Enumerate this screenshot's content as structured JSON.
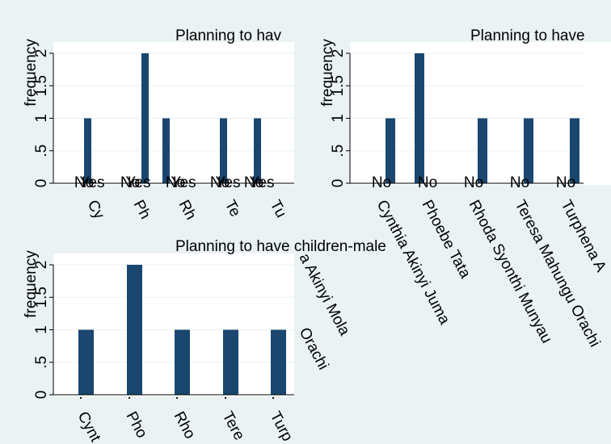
{
  "chart_data": [
    {
      "type": "bar",
      "title": "Planning to hav",
      "ylabel": "frequency",
      "ylim": [
        0,
        2
      ],
      "yticks": [
        "0",
        ".5",
        "1",
        "1.5",
        "2"
      ],
      "grid": true,
      "categories": [
        "Cy",
        "Ph",
        "Rh",
        "Te",
        "Tu"
      ],
      "groups": [
        "No",
        "Yes"
      ],
      "series": [
        {
          "values": [
            1,
            2,
            1,
            1,
            1
          ]
        },
        {
          "values": [
            0,
            0,
            0,
            0,
            0
          ]
        }
      ]
    },
    {
      "type": "bar",
      "title": "Planning to have",
      "ylabel": "frequency",
      "ylim": [
        0,
        2
      ],
      "yticks": [
        "0",
        ".5",
        "1",
        "1.5",
        "2"
      ],
      "grid": true,
      "categories": [
        "Cynthia Akinyi Juma",
        "Phoebe Tata",
        "Rhoda Syonthi Munyau",
        "Teresa Mahungu Orachi",
        "Turphena A"
      ],
      "groups": [
        "No",
        "No",
        "No",
        "No",
        "No"
      ],
      "series": [
        {
          "values": [
            1,
            2,
            1,
            1,
            1
          ]
        }
      ]
    },
    {
      "type": "bar",
      "title": "Planning to have children-male",
      "ylabel": "frequency",
      "ylim": [
        0,
        2
      ],
      "yticks": [
        "0",
        ".5",
        "1",
        "1.5",
        "2"
      ],
      "grid": true,
      "categories": [
        "Cynt",
        "Pho",
        "Rho",
        "Tere",
        "Turp"
      ],
      "groups": [
        ".",
        ".",
        ".",
        ".",
        "."
      ],
      "series": [
        {
          "values": [
            1,
            2,
            1,
            1,
            1
          ]
        }
      ]
    }
  ],
  "overflow_labels": [
    "a Akinyi Mola",
    "Orachi"
  ],
  "colors": {
    "bar": "#1a476f",
    "grid": "#eaf2f3",
    "background": "#eaf2f3",
    "plot": "#ffffff"
  }
}
